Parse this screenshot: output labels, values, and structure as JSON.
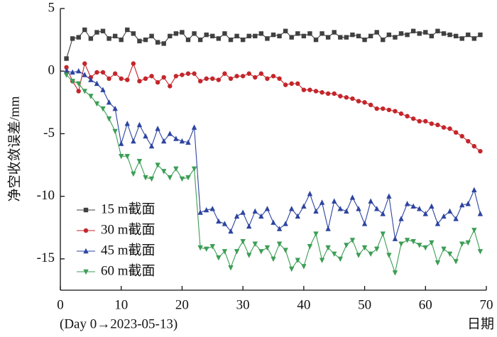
{
  "chart_data": {
    "type": "line",
    "ylabel": "净空收敛误差/mm",
    "xlabel": "日期",
    "xnote": "(Day 0→2023-05-13)",
    "xlim": [
      0,
      70
    ],
    "xticks": [
      0,
      10,
      20,
      30,
      40,
      50,
      60,
      70
    ],
    "ylim": [
      -17.5,
      5
    ],
    "yticks": [
      5,
      0,
      -5,
      -10,
      -15
    ],
    "legend": "lower left",
    "x": [
      1,
      2,
      3,
      4,
      5,
      6,
      7,
      8,
      9,
      10,
      11,
      12,
      13,
      14,
      15,
      16,
      17,
      18,
      19,
      20,
      21,
      22,
      23,
      24,
      25,
      26,
      27,
      28,
      29,
      30,
      31,
      32,
      33,
      34,
      35,
      36,
      37,
      38,
      39,
      40,
      41,
      42,
      43,
      44,
      45,
      46,
      47,
      48,
      49,
      50,
      51,
      52,
      53,
      54,
      55,
      56,
      57,
      58,
      59,
      60,
      61,
      62,
      63,
      64,
      65,
      66,
      67,
      68,
      69
    ],
    "series": [
      {
        "name": "15 m截面",
        "color": "#404040",
        "marker": "square",
        "values": [
          1.0,
          2.6,
          2.7,
          3.3,
          2.6,
          3.1,
          3.2,
          2.6,
          2.8,
          2.5,
          3.3,
          3.0,
          2.4,
          2.5,
          2.8,
          2.3,
          2.2,
          2.8,
          3.0,
          3.1,
          2.5,
          3.0,
          2.5,
          2.9,
          2.8,
          2.6,
          3.0,
          2.5,
          2.8,
          2.5,
          2.8,
          2.8,
          3.0,
          2.6,
          2.9,
          2.8,
          3.2,
          2.7,
          3.0,
          2.8,
          3.0,
          2.5,
          3.0,
          2.7,
          3.1,
          2.7,
          2.7,
          2.9,
          2.8,
          2.5,
          2.8,
          3.1,
          2.5,
          2.9,
          2.7,
          3.0,
          2.9,
          3.2,
          3.0,
          3.1,
          2.8,
          3.2,
          3.0,
          2.9,
          2.8,
          2.6,
          2.9,
          2.6,
          2.9
        ]
      },
      {
        "name": "30 m截面",
        "color": "#c4262b",
        "marker": "circle",
        "values": [
          0.3,
          -0.8,
          -1.6,
          0.6,
          -0.5,
          -0.1,
          -0.1,
          -0.6,
          -0.2,
          -0.6,
          -0.7,
          0.6,
          -0.8,
          -0.6,
          -0.4,
          -0.9,
          -0.5,
          -1.2,
          -0.4,
          -0.3,
          -0.2,
          -0.2,
          -0.8,
          -0.6,
          -0.6,
          -0.7,
          -0.2,
          -0.6,
          -0.4,
          -0.4,
          -0.2,
          -0.5,
          -0.2,
          -0.6,
          -0.4,
          -0.6,
          -1.1,
          -1.0,
          -1.0,
          -1.5,
          -1.5,
          -1.6,
          -1.7,
          -1.8,
          -1.8,
          -2.0,
          -2.1,
          -2.2,
          -2.4,
          -2.5,
          -2.7,
          -3.0,
          -3.0,
          -3.1,
          -3.2,
          -3.4,
          -3.6,
          -3.8,
          -4.0,
          -4.0,
          -4.2,
          -4.3,
          -4.5,
          -4.6,
          -4.9,
          -5.2,
          -5.6,
          -6.0,
          -6.4
        ]
      },
      {
        "name": "45 m截面",
        "color": "#2d44a0",
        "marker": "triangle-up",
        "values": [
          0.0,
          -0.1,
          0.0,
          -0.3,
          -0.7,
          -1.0,
          -1.5,
          -2.5,
          -3.0,
          -5.8,
          -4.2,
          -5.6,
          -4.3,
          -5.2,
          -6.0,
          -4.6,
          -5.6,
          -5.0,
          -5.4,
          -5.6,
          -5.7,
          -4.5,
          -11.3,
          -11.1,
          -11.0,
          -12.0,
          -12.2,
          -12.8,
          -11.6,
          -11.3,
          -12.4,
          -11.2,
          -11.6,
          -11.0,
          -12.1,
          -12.6,
          -12.2,
          -11.0,
          -11.6,
          -10.8,
          -9.8,
          -11.2,
          -10.5,
          -12.6,
          -10.4,
          -11.0,
          -11.2,
          -10.1,
          -11.0,
          -12.2,
          -10.4,
          -11.0,
          -11.4,
          -10.0,
          -13.4,
          -11.8,
          -10.6,
          -10.8,
          -11.0,
          -11.4,
          -10.8,
          -12.2,
          -11.6,
          -11.2,
          -11.8,
          -10.7,
          -10.6,
          -9.5,
          -11.4
        ]
      },
      {
        "name": "60 m截面",
        "color": "#3c9e55",
        "marker": "triangle-down",
        "values": [
          -0.3,
          -0.8,
          -1.0,
          -1.6,
          -2.0,
          -2.6,
          -3.0,
          -3.8,
          -4.8,
          -6.8,
          -6.8,
          -8.2,
          -7.2,
          -8.5,
          -8.6,
          -7.5,
          -8.0,
          -8.5,
          -7.8,
          -8.6,
          -8.5,
          -7.8,
          -14.1,
          -14.2,
          -14.0,
          -14.9,
          -14.4,
          -15.7,
          -14.4,
          -13.6,
          -14.7,
          -13.8,
          -14.4,
          -14.1,
          -15.0,
          -13.8,
          -14.3,
          -15.8,
          -15.1,
          -15.6,
          -14.0,
          -13.0,
          -15.1,
          -14.1,
          -14.6,
          -15.0,
          -13.9,
          -13.5,
          -14.7,
          -14.1,
          -14.6,
          -14.2,
          -13.0,
          -14.7,
          -16.1,
          -13.8,
          -13.5,
          -13.6,
          -13.9,
          -14.1,
          -13.7,
          -15.3,
          -14.2,
          -14.6,
          -15.2,
          -13.8,
          -13.7,
          -12.7,
          -14.4
        ]
      }
    ]
  }
}
